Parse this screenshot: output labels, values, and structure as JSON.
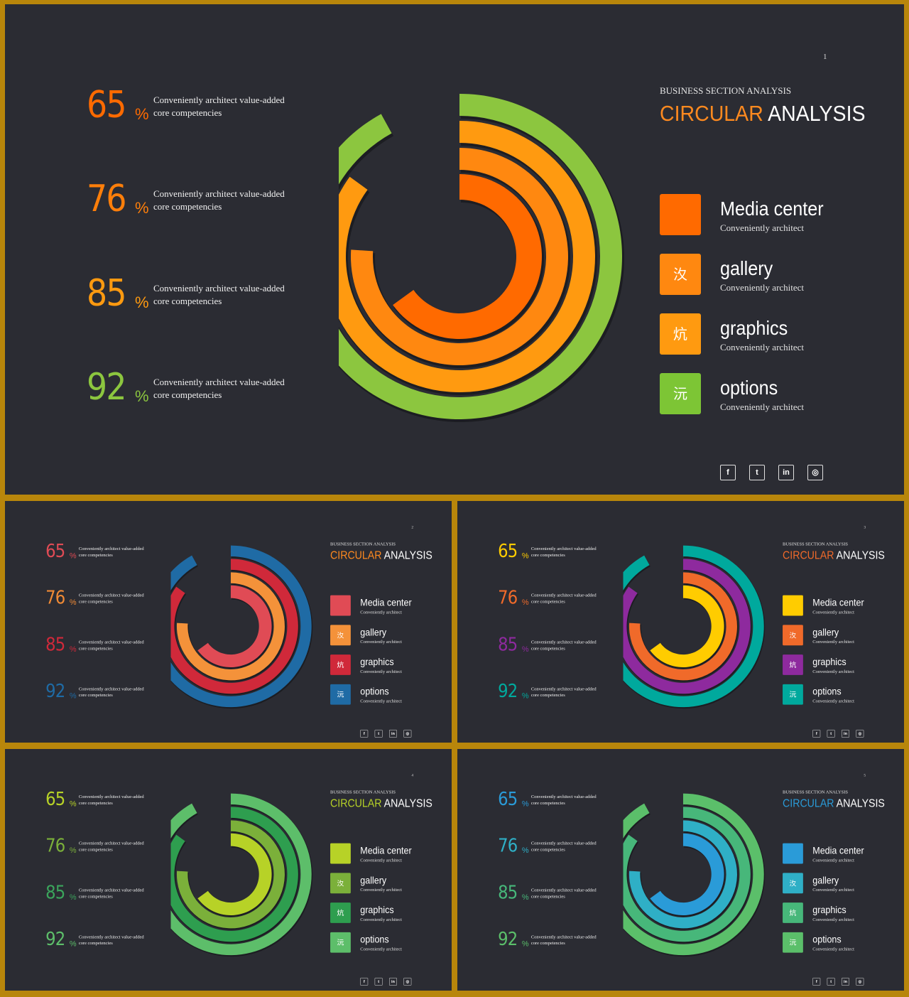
{
  "slides": [
    {
      "page": "1",
      "subtitle": "BUSINESS SECTION ANALYSIS",
      "title_accent": "CIRCULAR",
      "title_rest": "ANALYSIS",
      "accent": "#FF8A1F",
      "stats": [
        {
          "value": "65",
          "percent": "%",
          "line1": "Conveniently architect value-added",
          "line2": "core competencies",
          "color": "#FF6A00"
        },
        {
          "value": "76",
          "percent": "%",
          "line1": "Conveniently architect value-added",
          "line2": "core competencies",
          "color": "#FF7F0A"
        },
        {
          "value": "85",
          "percent": "%",
          "line1": "Conveniently architect value-added",
          "line2": "core competencies",
          "color": "#FF9A10"
        },
        {
          "value": "92",
          "percent": "%",
          "line1": "Conveniently architect value-added",
          "line2": "core competencies",
          "color": "#8CC63F"
        }
      ],
      "legend": [
        {
          "label": "Media center",
          "sub": "Conveniently architect",
          "glyph": "",
          "color": "#FF6A00"
        },
        {
          "label": "gallery",
          "sub": "Conveniently architect",
          "glyph": "汷",
          "color": "#FF8810"
        },
        {
          "label": "graphics",
          "sub": "Conveniently architect",
          "glyph": "炕",
          "color": "#FF9A10"
        },
        {
          "label": "options",
          "sub": "Conveniently architect",
          "glyph": "沅",
          "color": "#7DC535"
        }
      ],
      "ring_colors": [
        "#FF6A00",
        "#FF8810",
        "#FF9A10",
        "#8CC63F"
      ]
    },
    {
      "page": "2",
      "subtitle": "BUSINESS SECTION ANALYSIS",
      "title_accent": "CIRCULAR",
      "title_rest": "ANALYSIS",
      "accent": "#FF8A1F",
      "stats": [
        {
          "value": "65",
          "percent": "%",
          "line1": "Conveniently architect value-added",
          "line2": "core competencies",
          "color": "#E04B55"
        },
        {
          "value": "76",
          "percent": "%",
          "line1": "Conveniently architect value-added",
          "line2": "core competencies",
          "color": "#F08A35"
        },
        {
          "value": "85",
          "percent": "%",
          "line1": "Conveniently architect value-added",
          "line2": "core competencies",
          "color": "#D0293A"
        },
        {
          "value": "92",
          "percent": "%",
          "line1": "Conveniently architect value-added",
          "line2": "core competencies",
          "color": "#1F6BA5"
        }
      ],
      "legend": [
        {
          "label": "Media center",
          "sub": "Conveniently architect",
          "glyph": "",
          "color": "#E04B55"
        },
        {
          "label": "gallery",
          "sub": "Conveniently architect",
          "glyph": "汷",
          "color": "#F4923A"
        },
        {
          "label": "graphics",
          "sub": "Conveniently architect",
          "glyph": "炕",
          "color": "#D0293A"
        },
        {
          "label": "options",
          "sub": "Conveniently architect",
          "glyph": "沅",
          "color": "#1F6BA5"
        }
      ],
      "ring_colors": [
        "#E04B55",
        "#F4923A",
        "#D0293A",
        "#1F6BA5"
      ]
    },
    {
      "page": "3",
      "subtitle": "BUSINESS SECTION ANALYSIS",
      "title_accent": "CIRCULAR",
      "title_rest": "ANALYSIS",
      "accent": "#F06A2A",
      "stats": [
        {
          "value": "65",
          "percent": "%",
          "line1": "Conveniently architect value-added",
          "line2": "core competencies",
          "color": "#FFCC00"
        },
        {
          "value": "76",
          "percent": "%",
          "line1": "Conveniently architect value-added",
          "line2": "core competencies",
          "color": "#F06A2A"
        },
        {
          "value": "85",
          "percent": "%",
          "line1": "Conveniently architect value-added",
          "line2": "core competencies",
          "color": "#8E2A9E"
        },
        {
          "value": "92",
          "percent": "%",
          "line1": "Conveniently architect value-added",
          "line2": "core competencies",
          "color": "#00A99D"
        }
      ],
      "legend": [
        {
          "label": "Media center",
          "sub": "Conveniently architect",
          "glyph": "",
          "color": "#FFCC00"
        },
        {
          "label": "gallery",
          "sub": "Conveniently architect",
          "glyph": "汷",
          "color": "#F06A2A"
        },
        {
          "label": "graphics",
          "sub": "Conveniently architect",
          "glyph": "炕",
          "color": "#8E2A9E"
        },
        {
          "label": "options",
          "sub": "Conveniently architect",
          "glyph": "沅",
          "color": "#00A99D"
        }
      ],
      "ring_colors": [
        "#FFCC00",
        "#F06A2A",
        "#8E2A9E",
        "#00A99D"
      ]
    },
    {
      "page": "4",
      "subtitle": "BUSINESS SECTION ANALYSIS",
      "title_accent": "CIRCULAR",
      "title_rest": "ANALYSIS",
      "accent": "#B7D227",
      "stats": [
        {
          "value": "65",
          "percent": "%",
          "line1": "Conveniently architect value-added",
          "line2": "core competencies",
          "color": "#B7D227"
        },
        {
          "value": "76",
          "percent": "%",
          "line1": "Conveniently architect value-added",
          "line2": "core competencies",
          "color": "#7BB03A"
        },
        {
          "value": "85",
          "percent": "%",
          "line1": "Conveniently architect value-added",
          "line2": "core competencies",
          "color": "#3BA55C"
        },
        {
          "value": "92",
          "percent": "%",
          "line1": "Conveniently architect value-added",
          "line2": "core competencies",
          "color": "#5DBE6A"
        }
      ],
      "legend": [
        {
          "label": "Media center",
          "sub": "Conveniently architect",
          "glyph": "",
          "color": "#B7D227"
        },
        {
          "label": "gallery",
          "sub": "Conveniently architect",
          "glyph": "汷",
          "color": "#7BB03A"
        },
        {
          "label": "graphics",
          "sub": "Conveniently architect",
          "glyph": "炕",
          "color": "#2E9E4F"
        },
        {
          "label": "options",
          "sub": "Conveniently architect",
          "glyph": "沅",
          "color": "#5DBE6A"
        }
      ],
      "ring_colors": [
        "#B7D227",
        "#7BB03A",
        "#2E9E4F",
        "#5DBE6A"
      ]
    },
    {
      "page": "5",
      "subtitle": "BUSINESS SECTION ANALYSIS",
      "title_accent": "CIRCULAR",
      "title_rest": "ANALYSIS",
      "accent": "#2A9BD8",
      "stats": [
        {
          "value": "65",
          "percent": "%",
          "line1": "Conveniently architect value-added",
          "line2": "core competencies",
          "color": "#2A9BD8"
        },
        {
          "value": "76",
          "percent": "%",
          "line1": "Conveniently architect value-added",
          "line2": "core competencies",
          "color": "#2FAFC6"
        },
        {
          "value": "85",
          "percent": "%",
          "line1": "Conveniently architect value-added",
          "line2": "core competencies",
          "color": "#47B77A"
        },
        {
          "value": "92",
          "percent": "%",
          "line1": "Conveniently architect value-added",
          "line2": "core competencies",
          "color": "#5BBF6A"
        }
      ],
      "legend": [
        {
          "label": "Media center",
          "sub": "Conveniently architect",
          "glyph": "",
          "color": "#2A9BD8"
        },
        {
          "label": "gallery",
          "sub": "Conveniently architect",
          "glyph": "汷",
          "color": "#2FAFC6"
        },
        {
          "label": "graphics",
          "sub": "Conveniently architect",
          "glyph": "炕",
          "color": "#47B77A"
        },
        {
          "label": "options",
          "sub": "Conveniently architect",
          "glyph": "沅",
          "color": "#5BBF6A"
        }
      ],
      "ring_colors": [
        "#2A9BD8",
        "#2FAFC6",
        "#47B77A",
        "#5BBF6A"
      ]
    }
  ],
  "social": [
    {
      "icon": "facebook-icon",
      "glyph": "f"
    },
    {
      "icon": "twitter-icon",
      "glyph": "t"
    },
    {
      "icon": "linkedin-icon",
      "glyph": "in"
    },
    {
      "icon": "instagram-icon",
      "glyph": "◎"
    }
  ],
  "chart_data": [
    {
      "type": "radial-bar",
      "slide": 1,
      "categories": [
        "Media center",
        "gallery",
        "graphics",
        "options"
      ],
      "values": [
        65,
        76,
        85,
        92
      ],
      "unit": "%"
    },
    {
      "type": "radial-bar",
      "slide": 2,
      "categories": [
        "Media center",
        "gallery",
        "graphics",
        "options"
      ],
      "values": [
        65,
        76,
        85,
        92
      ],
      "unit": "%"
    },
    {
      "type": "radial-bar",
      "slide": 3,
      "categories": [
        "Media center",
        "gallery",
        "graphics",
        "options"
      ],
      "values": [
        65,
        76,
        85,
        92
      ],
      "unit": "%"
    },
    {
      "type": "radial-bar",
      "slide": 4,
      "categories": [
        "Media center",
        "gallery",
        "graphics",
        "options"
      ],
      "values": [
        65,
        76,
        85,
        92
      ],
      "unit": "%"
    },
    {
      "type": "radial-bar",
      "slide": 5,
      "categories": [
        "Media center",
        "gallery",
        "graphics",
        "options"
      ],
      "values": [
        65,
        76,
        85,
        92
      ],
      "unit": "%"
    }
  ]
}
